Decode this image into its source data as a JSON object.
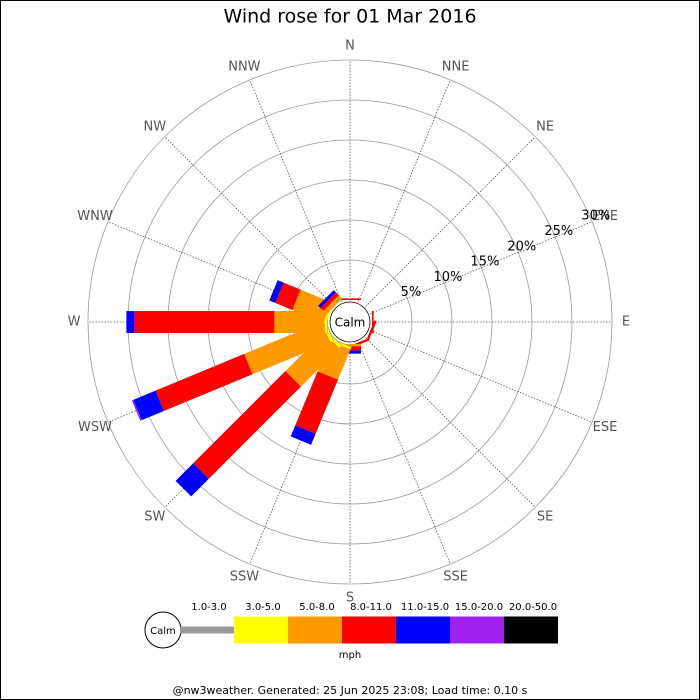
{
  "chart_data": {
    "type": "windrose",
    "title": "Wind rose for 01 Mar 2016",
    "calm_label": "Calm",
    "categories": [
      "N",
      "NNE",
      "NE",
      "ENE",
      "E",
      "ESE",
      "SE",
      "SSE",
      "S",
      "SSW",
      "SW",
      "WSW",
      "W",
      "WNW",
      "NW",
      "NNW"
    ],
    "series": [
      {
        "name": "1.0-3.0",
        "color": "#999999",
        "values": [
          0,
          0,
          0,
          0,
          0,
          0,
          0,
          0,
          0,
          0.1,
          0.1,
          0.1,
          0.1,
          0,
          0,
          0
        ]
      },
      {
        "name": "3.0-5.0",
        "color": "#ffff00",
        "values": [
          0,
          0,
          0,
          0,
          0,
          0,
          0,
          0,
          0,
          0.3,
          0.4,
          0.4,
          0.3,
          0.3,
          0,
          0
        ]
      },
      {
        "name": "5.0-8.0",
        "color": "#ff9900",
        "values": [
          0,
          0,
          0,
          0,
          0,
          0,
          0,
          0,
          0.3,
          4.1,
          6.8,
          10.5,
          6.3,
          4.2,
          0.6,
          0
        ]
      },
      {
        "name": "8.0-11.0",
        "color": "#ff0000",
        "values": [
          0.2,
          0,
          0,
          0,
          0.2,
          0.3,
          0,
          0.3,
          0.5,
          7.3,
          16.3,
          12,
          17.5,
          2.3,
          0.5,
          0
        ]
      },
      {
        "name": "11.0-15.0",
        "color": "#0000ff",
        "values": [
          0,
          0,
          0,
          0,
          0,
          0,
          0,
          0,
          0.4,
          1.5,
          3.1,
          3,
          1,
          0.8,
          0.4,
          0
        ]
      },
      {
        "name": "15.0-20.0",
        "color": "#a020f0",
        "values": [
          0,
          0,
          0,
          0,
          0,
          0,
          0,
          0,
          0,
          0,
          0,
          0.2,
          0,
          0,
          0,
          0
        ]
      },
      {
        "name": "20.0-50.0",
        "color": "#000000",
        "values": [
          0,
          0,
          0,
          0,
          0,
          0,
          0,
          0,
          0,
          0,
          0,
          0,
          0,
          0,
          0,
          0
        ]
      }
    ],
    "rlim": [
      0,
      30
    ],
    "rticks": [
      {
        "value": 5,
        "label": "5%"
      },
      {
        "value": 10,
        "label": "10%"
      },
      {
        "value": 15,
        "label": "15%"
      },
      {
        "value": 20,
        "label": "20%"
      },
      {
        "value": 25,
        "label": "25%"
      },
      {
        "value": 30,
        "label": "30%"
      }
    ],
    "units": "mph",
    "footer": "@nw3weather. Generated: 25 Jun 2025 23:08; Load time: 0.10 s"
  }
}
